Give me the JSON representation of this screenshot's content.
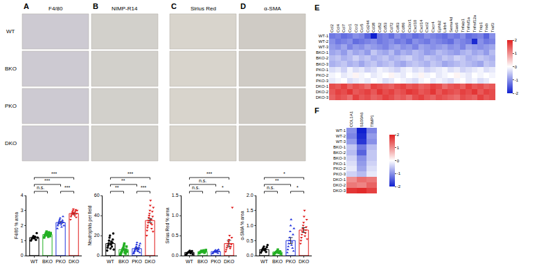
{
  "chart_data": [
    {
      "type": "bar",
      "panel": "A",
      "title": "F4/80",
      "image_rows": [
        "WT",
        "BKO",
        "PKO",
        "DKO"
      ],
      "y_label": "F4/80 % area",
      "categories": [
        "WT",
        "BKO",
        "PKO",
        "DKO"
      ],
      "values": [
        1.2,
        1.4,
        2.2,
        2.8
      ],
      "errors": [
        0.05,
        0.04,
        0.06,
        0.05
      ],
      "points": [
        [
          1.0,
          1.1,
          1.2,
          1.3,
          1.15,
          1.25,
          1.05,
          1.5,
          1.2
        ],
        [
          1.2,
          1.3,
          1.4,
          1.5,
          1.6,
          1.35,
          1.45,
          1.25,
          1.55,
          1.4,
          1.3,
          1.5
        ],
        [
          1.8,
          2.0,
          2.1,
          2.2,
          2.3,
          2.4,
          2.5,
          2.15,
          2.05,
          1.9,
          2.25,
          2.35,
          2.6,
          2.2,
          2.0
        ],
        [
          2.4,
          2.6,
          2.7,
          2.8,
          2.9,
          3.0,
          3.1,
          2.75,
          2.85,
          2.65,
          2.95,
          3.05,
          2.55,
          2.8,
          3.0
        ]
      ],
      "colors": [
        "#000000",
        "#22b022",
        "#2233dd",
        "#e01818"
      ],
      "marker": [
        "circle",
        "square",
        "triangle-up",
        "triangle-down"
      ],
      "ylim": [
        0,
        4
      ],
      "yticks": [
        0,
        1,
        2,
        3,
        4
      ],
      "comparisons": [
        {
          "pair": [
            "WT",
            "BKO"
          ],
          "label": "n.s."
        },
        {
          "pair": [
            "PKO",
            "DKO"
          ],
          "label": "***"
        },
        {
          "pair": [
            "WT",
            "PKO"
          ],
          "label": "***"
        },
        {
          "pair": [
            "WT",
            "DKO"
          ],
          "label": "***"
        }
      ]
    },
    {
      "type": "bar",
      "panel": "B",
      "title": "NIMP-R14",
      "image_rows": [
        "WT",
        "BKO",
        "PKO",
        "DKO"
      ],
      "y_label": "Neutrophils per field",
      "categories": [
        "WT",
        "BKO",
        "PKO",
        "DKO"
      ],
      "values": [
        12,
        6,
        7,
        35
      ],
      "errors": [
        1.2,
        0.8,
        0.8,
        2
      ],
      "points": [
        [
          5,
          8,
          10,
          12,
          15,
          18,
          20,
          7,
          11,
          14,
          9,
          13,
          16,
          22,
          6
        ],
        [
          1,
          2,
          3,
          4,
          5,
          6,
          7,
          8,
          10,
          12,
          3,
          5,
          2,
          6,
          9,
          4
        ],
        [
          2,
          3,
          4,
          5,
          6,
          7,
          8,
          9,
          11,
          13,
          5,
          7,
          4,
          6,
          8,
          10,
          3,
          12
        ],
        [
          20,
          25,
          28,
          30,
          33,
          35,
          38,
          40,
          42,
          45,
          50,
          55,
          32,
          36,
          27,
          31,
          44,
          39,
          24,
          48
        ]
      ],
      "colors": [
        "#000000",
        "#22b022",
        "#2233dd",
        "#e01818"
      ],
      "marker": [
        "circle",
        "square",
        "triangle-up",
        "triangle-down"
      ],
      "ylim": [
        0,
        60
      ],
      "yticks": [
        0,
        20,
        40,
        60
      ],
      "comparisons": [
        {
          "pair": [
            "WT",
            "BKO"
          ],
          "label": "**"
        },
        {
          "pair": [
            "PKO",
            "DKO"
          ],
          "label": "***"
        },
        {
          "pair": [
            "WT",
            "PKO"
          ],
          "label": "**"
        },
        {
          "pair": [
            "WT",
            "DKO"
          ],
          "label": "***"
        }
      ]
    },
    {
      "type": "bar",
      "panel": "C",
      "title": "Sirius Red",
      "image_rows": [
        "WT",
        "BKO",
        "PKO",
        "DKO"
      ],
      "y_label": "Sirius Red % area",
      "categories": [
        "WT",
        "BKO",
        "PKO",
        "DKO"
      ],
      "values": [
        0.08,
        0.1,
        0.1,
        0.3
      ],
      "errors": [
        0.01,
        0.01,
        0.01,
        0.08
      ],
      "points": [
        [
          0.03,
          0.05,
          0.07,
          0.08,
          0.1,
          0.12,
          0.06,
          0.09,
          0.11,
          0.04
        ],
        [
          0.06,
          0.08,
          0.1,
          0.12,
          0.09,
          0.11,
          0.13,
          0.07,
          0.1,
          0.14
        ],
        [
          0.05,
          0.07,
          0.09,
          0.1,
          0.12,
          0.14,
          0.08,
          0.11,
          0.13,
          0.06,
          0.15,
          0.1
        ],
        [
          0.1,
          0.15,
          0.2,
          0.25,
          0.3,
          0.35,
          0.4,
          0.5,
          0.18,
          0.22,
          0.28,
          0.45,
          1.2
        ]
      ],
      "colors": [
        "#000000",
        "#22b022",
        "#2233dd",
        "#e01818"
      ],
      "marker": [
        "circle",
        "square",
        "triangle-up",
        "triangle-down"
      ],
      "ylim": [
        0,
        1.5
      ],
      "yticks": [
        {
          "value": 0,
          "label": "0.0"
        },
        0.5,
        {
          "value": 1,
          "label": "1.0"
        },
        1.5
      ],
      "comparisons": [
        {
          "pair": [
            "WT",
            "BKO"
          ],
          "label": "n.s."
        },
        {
          "pair": [
            "PKO",
            "DKO"
          ],
          "label": "*"
        },
        {
          "pair": [
            "WT",
            "PKO"
          ],
          "label": "n.s."
        },
        {
          "pair": [
            "WT",
            "DKO"
          ],
          "label": "***"
        }
      ]
    },
    {
      "type": "bar",
      "panel": "D",
      "title": "α-SMA",
      "image_rows": [
        "WT",
        "BKO",
        "PKO",
        "DKO"
      ],
      "y_label": "α-SMA % area",
      "categories": [
        "WT",
        "BKO",
        "PKO",
        "DKO"
      ],
      "values": [
        0.2,
        0.12,
        0.5,
        0.85
      ],
      "errors": [
        0.03,
        0.02,
        0.1,
        0.08
      ],
      "points": [
        [
          0.1,
          0.15,
          0.2,
          0.25,
          0.3,
          0.18,
          0.22,
          0.12,
          0.28,
          0.35
        ],
        [
          0.05,
          0.08,
          0.1,
          0.12,
          0.15,
          0.2,
          0.09,
          0.11,
          0.14,
          0.06
        ],
        [
          0.1,
          0.2,
          0.3,
          0.4,
          0.5,
          0.6,
          0.8,
          1.0,
          1.2,
          0.35,
          0.45,
          0.25,
          0.7,
          0.15,
          0.9
        ],
        [
          0.4,
          0.5,
          0.6,
          0.7,
          0.8,
          0.9,
          1.0,
          1.1,
          1.3,
          1.5,
          0.65,
          0.75,
          0.85,
          0.95,
          1.2,
          0.55
        ]
      ],
      "colors": [
        "#000000",
        "#22b022",
        "#2233dd",
        "#e01818"
      ],
      "marker": [
        "circle",
        "square",
        "triangle-up",
        "triangle-down"
      ],
      "ylim": [
        0,
        2
      ],
      "yticks": [
        {
          "value": 0,
          "label": "0.0"
        },
        0.5,
        {
          "value": 1,
          "label": "1.0"
        },
        1.5,
        {
          "value": 2,
          "label": "2.0"
        }
      ],
      "comparisons": [
        {
          "pair": [
            "WT",
            "BKO"
          ],
          "label": "n.s."
        },
        {
          "pair": [
            "PKO",
            "DKO"
          ],
          "label": "*"
        },
        {
          "pair": [
            "WT",
            "PKO"
          ],
          "label": "**"
        },
        {
          "pair": [
            "WT",
            "DKO"
          ],
          "label": "*"
        }
      ]
    },
    {
      "type": "heatmap",
      "panel": "E",
      "x": [
        "Ccl2",
        "Ccl4",
        "Ccl7",
        "Ccr1",
        "Ccr2",
        "Ccr5",
        "Cd244",
        "Cd38",
        "Cd52",
        "Cd53",
        "Cd72",
        "Cd83",
        "Cd86",
        "Cx3cr1",
        "Cxcl10",
        "Cxcl14",
        "Cxcl2",
        "Cxcr4",
        "Ephb2",
        "Lilrb4",
        "Sema4d",
        "Gas6",
        "Tnfaip1",
        "Tnfrsf1a",
        "Tnfrsf12a",
        "Tnip1",
        "Tnxb",
        "Traf3"
      ],
      "y": [
        "WT-1",
        "WT-2",
        "WT-3",
        "BKO-1",
        "BKO-2",
        "BKO-3",
        "PKO-1",
        "PKO-2",
        "PKO-3",
        "DKO-1",
        "DKO-2",
        "DKO-3"
      ],
      "z": [
        [
          -1.2,
          -1.1,
          -1.3,
          -1.2,
          -1.0,
          -1.1,
          -1.4,
          -2.0,
          -1.2,
          -1.1,
          -1.3,
          -1.0,
          -1.2,
          -1.1,
          -1.3,
          -1.2,
          -1.0,
          -1.1,
          -1.2,
          -1.3,
          -1.1,
          -1.2,
          -1.0,
          -1.3,
          -1.2,
          -1.1,
          -1.4,
          -1.0
        ],
        [
          -1.0,
          -1.2,
          -1.1,
          -1.0,
          -1.3,
          -1.2,
          -1.1,
          -1.0,
          -1.2,
          -1.1,
          -1.0,
          -1.2,
          -1.1,
          -1.3,
          -1.0,
          -1.1,
          -1.2,
          -1.0,
          -1.1,
          -1.2,
          -1.3,
          -1.0,
          -1.1,
          -1.2,
          -1.9,
          -1.0,
          -1.2,
          -1.1
        ],
        [
          -0.9,
          -1.0,
          -0.8,
          -1.1,
          -0.9,
          -1.0,
          -0.8,
          -0.9,
          -1.0,
          -1.1,
          -0.9,
          -0.8,
          -1.0,
          -0.9,
          -1.1,
          -0.8,
          -0.9,
          -1.0,
          -0.9,
          -0.8,
          -1.0,
          -0.9,
          -1.1,
          -0.8,
          -0.9,
          -1.0,
          -0.9,
          -0.8
        ],
        [
          -0.8,
          -0.7,
          -0.9,
          -0.6,
          -0.8,
          -0.7,
          -0.9,
          -0.5,
          -0.7,
          -0.8,
          -0.6,
          -0.9,
          -0.7,
          -0.8,
          -0.6,
          -0.7,
          -0.9,
          -0.8,
          -0.6,
          -0.7,
          -0.8,
          -0.9,
          -0.7,
          -0.6,
          -0.8,
          -0.7,
          -0.9,
          -0.6
        ],
        [
          -0.6,
          -0.5,
          -0.7,
          -0.6,
          -0.4,
          -0.6,
          -0.5,
          -0.7,
          -0.6,
          -0.5,
          -0.7,
          -0.6,
          -0.5,
          -0.4,
          -0.6,
          -0.7,
          -0.5,
          -0.6,
          -0.7,
          -0.5,
          -0.6,
          -0.4,
          -0.5,
          -0.7,
          -0.6,
          -0.5,
          -0.6,
          -0.7
        ],
        [
          -0.7,
          -0.6,
          -0.5,
          -0.7,
          -0.6,
          -0.8,
          -0.6,
          -0.5,
          -0.7,
          -0.6,
          -0.5,
          -0.7,
          -0.8,
          -0.6,
          -0.5,
          -0.6,
          -0.7,
          -0.5,
          -0.6,
          -0.8,
          -0.7,
          -0.6,
          -0.5,
          -0.6,
          -0.7,
          -0.8,
          -0.5,
          -0.6
        ],
        [
          -0.3,
          -0.2,
          -0.4,
          -0.1,
          -0.3,
          -0.2,
          -0.4,
          -0.3,
          -0.1,
          -0.2,
          -0.3,
          -0.4,
          -0.2,
          -0.1,
          -0.3,
          -0.2,
          -0.4,
          -0.3,
          -0.2,
          -0.1,
          -0.3,
          -0.2,
          -0.4,
          -0.3,
          -0.2,
          -0.1,
          -0.3,
          -0.2
        ],
        [
          -0.1,
          0.0,
          -0.2,
          -0.1,
          0.1,
          -0.1,
          0.0,
          -0.2,
          -0.1,
          0.0,
          0.1,
          -0.1,
          -0.2,
          0.0,
          -0.1,
          0.1,
          -0.1,
          0.0,
          -0.2,
          -0.1,
          0.0,
          0.1,
          -0.1,
          -0.2,
          0.0,
          -0.1,
          0.0,
          -0.1
        ],
        [
          -0.2,
          -0.1,
          0.0,
          -0.3,
          -0.2,
          -0.1,
          -0.2,
          0.0,
          -0.1,
          -0.3,
          -0.2,
          0.0,
          -0.1,
          -0.2,
          -0.3,
          -0.1,
          0.0,
          -0.2,
          -0.1,
          -0.2,
          -0.3,
          -0.1,
          0.0,
          -0.2,
          -0.1,
          -0.3,
          -0.2,
          0.0
        ],
        [
          1.6,
          1.5,
          1.7,
          1.4,
          1.6,
          1.5,
          1.3,
          1.7,
          1.6,
          1.5,
          1.4,
          1.6,
          1.7,
          1.5,
          1.6,
          1.4,
          1.5,
          1.7,
          1.6,
          1.3,
          1.5,
          1.6,
          1.4,
          1.7,
          1.5,
          1.6,
          1.4,
          1.5
        ],
        [
          1.5,
          1.7,
          1.6,
          1.8,
          1.5,
          1.6,
          1.7,
          1.5,
          1.8,
          1.6,
          1.7,
          1.5,
          1.6,
          1.8,
          1.7,
          1.5,
          1.6,
          1.8,
          1.5,
          1.7,
          1.6,
          1.5,
          1.7,
          1.6,
          1.8,
          1.5,
          1.7,
          1.6
        ],
        [
          1.4,
          1.6,
          1.5,
          1.3,
          1.7,
          1.5,
          1.6,
          1.4,
          1.5,
          1.7,
          1.6,
          1.4,
          1.5,
          1.3,
          1.6,
          1.7,
          1.5,
          1.4,
          1.6,
          1.5,
          1.4,
          1.3,
          1.6,
          1.5,
          1.4,
          1.7,
          1.5,
          1.6
        ]
      ],
      "colors": [
        "#1020d0",
        "#ffffff",
        "#e02020"
      ],
      "zlim": [
        -2,
        2
      ],
      "zticks": [
        -2,
        -1,
        0,
        1,
        2
      ]
    },
    {
      "type": "heatmap",
      "panel": "F",
      "x": [
        "COL1A1",
        "S100A6",
        "TIMP1"
      ],
      "y": [
        "WT-1",
        "WT-2",
        "WT-3",
        "BKO-1",
        "BKO-2",
        "BKO-3",
        "PKO-1",
        "PKO-2",
        "PKO-3",
        "DKO-1",
        "DKO-2",
        "DKO-3"
      ],
      "z": [
        [
          -1.0,
          -2.0,
          -1.1
        ],
        [
          -1.1,
          -1.9,
          -0.9
        ],
        [
          -0.9,
          -1.8,
          -1.0
        ],
        [
          -0.5,
          -1.2,
          -0.6
        ],
        [
          -0.6,
          -1.4,
          -0.5
        ],
        [
          -0.4,
          -1.0,
          -0.5
        ],
        [
          -0.3,
          -0.9,
          -0.4
        ],
        [
          -0.2,
          -0.8,
          -0.3
        ],
        [
          -0.4,
          -0.6,
          -0.2
        ],
        [
          1.0,
          1.3,
          1.2
        ],
        [
          1.2,
          1.1,
          1.4
        ],
        [
          1.8,
          1.9,
          1.7
        ]
      ],
      "colors": [
        "#1020d0",
        "#ffffff",
        "#e02020"
      ],
      "zlim": [
        -2,
        2
      ],
      "zticks": [
        -2,
        -1,
        0,
        1,
        2
      ]
    }
  ]
}
